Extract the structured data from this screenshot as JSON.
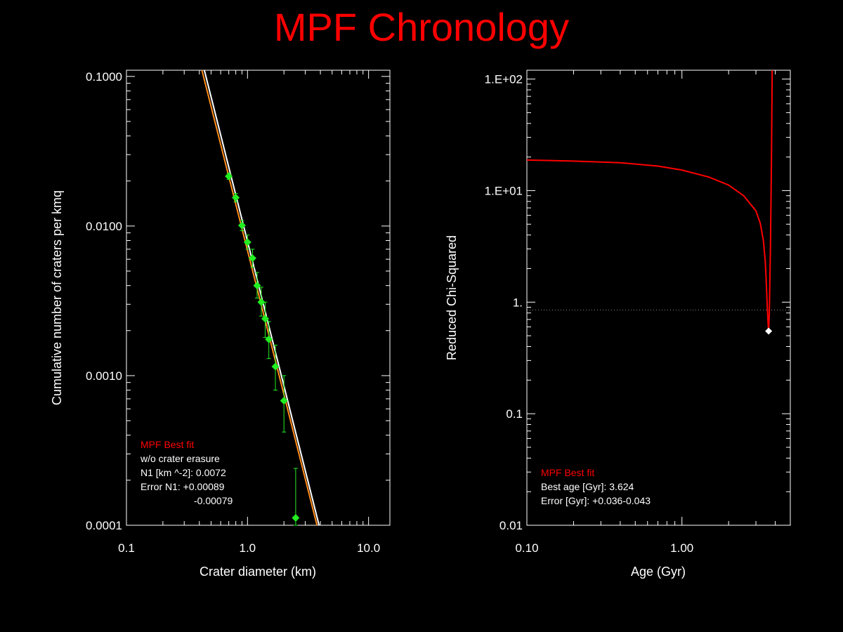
{
  "title": "MPF Chronology",
  "colors": {
    "title": "#ff0000",
    "fit_white": "#ffffff",
    "fit_orange": "#ff8c1a",
    "data_points": "#22ee22",
    "chi": "#ff0000",
    "min_marker": "#ffffff",
    "frame": "#ffffff"
  },
  "chart_data": [
    {
      "type": "scatter",
      "xlabel": "Crater diameter (km)",
      "ylabel": "Cumulative number of craters per kmq",
      "x_scale": "log",
      "y_scale": "log",
      "xlim": [
        0.1,
        15
      ],
      "ylim": [
        0.0001,
        0.11
      ],
      "x_ticks": [
        {
          "v": 0.1,
          "label": "0.1"
        },
        {
          "v": 1,
          "label": "1.0"
        },
        {
          "v": 10,
          "label": "10.0"
        }
      ],
      "y_ticks": [
        {
          "v": 0.0001,
          "label": "0.0001"
        },
        {
          "v": 0.001,
          "label": "0.0010"
        },
        {
          "v": 0.01,
          "label": "0.0100"
        },
        {
          "v": 0.1,
          "label": "0.1000"
        }
      ],
      "points": [
        {
          "x": 0.7,
          "y": 0.0215,
          "ylo": 0.0205,
          "yhi": 0.0225
        },
        {
          "x": 0.8,
          "y": 0.0155,
          "ylo": 0.0145,
          "yhi": 0.0165
        },
        {
          "x": 0.9,
          "y": 0.0101,
          "ylo": 0.0093,
          "yhi": 0.0109
        },
        {
          "x": 1.0,
          "y": 0.0078,
          "ylo": 0.007,
          "yhi": 0.0087
        },
        {
          "x": 1.1,
          "y": 0.0061,
          "ylo": 0.0053,
          "yhi": 0.007
        },
        {
          "x": 1.2,
          "y": 0.004,
          "ylo": 0.0033,
          "yhi": 0.0049
        },
        {
          "x": 1.3,
          "y": 0.0031,
          "ylo": 0.0025,
          "yhi": 0.0039
        },
        {
          "x": 1.4,
          "y": 0.0024,
          "ylo": 0.0018,
          "yhi": 0.0031
        },
        {
          "x": 1.5,
          "y": 0.00175,
          "ylo": 0.0013,
          "yhi": 0.0023
        },
        {
          "x": 1.7,
          "y": 0.00115,
          "ylo": 0.0008,
          "yhi": 0.0016
        },
        {
          "x": 2.0,
          "y": 0.00068,
          "ylo": 0.00042,
          "yhi": 0.001
        },
        {
          "x": 2.5,
          "y": 0.000112,
          "ylo": 0.0001,
          "yhi": 0.00024
        }
      ],
      "fits": [
        {
          "color": "#ffffff",
          "points": [
            [
              0.44,
              0.11
            ],
            [
              3.9,
              0.0001
            ]
          ]
        },
        {
          "color": "#ff8c1a",
          "points": [
            [
              0.42,
              0.11
            ],
            [
              3.75,
              0.0001
            ]
          ]
        }
      ],
      "legend": {
        "heading": "MPF Best fit",
        "lines": [
          "w/o crater erasure",
          "N1 [km ^-2]: 0.0072",
          "Error N1: +0.00089",
          "-0.00079"
        ]
      }
    },
    {
      "type": "line",
      "xlabel": "Age (Gyr)",
      "ylabel": "Reduced Chi-Squared",
      "x_scale": "log",
      "y_scale": "log",
      "xlim": [
        0.1,
        5.0
      ],
      "ylim": [
        0.01,
        120
      ],
      "x_ticks": [
        {
          "v": 0.1,
          "label": "0.10"
        },
        {
          "v": 1,
          "label": "1.00"
        }
      ],
      "y_ticks": [
        {
          "v": 0.01,
          "label": "0.01"
        },
        {
          "v": 0.1,
          "label": "0.1"
        },
        {
          "v": 1,
          "label": "1."
        },
        {
          "v": 10,
          "label": "1.E+01"
        },
        {
          "v": 100,
          "label": "1.E+02"
        }
      ],
      "series": [
        {
          "values": [
            [
              0.1,
              18.8
            ],
            [
              0.2,
              18.4
            ],
            [
              0.4,
              17.8
            ],
            [
              0.7,
              16.6
            ],
            [
              1.0,
              15.3
            ],
            [
              1.5,
              13.2
            ],
            [
              2.0,
              11.2
            ],
            [
              2.5,
              9.0
            ],
            [
              3.0,
              6.6
            ],
            [
              3.2,
              5.1
            ],
            [
              3.35,
              3.6
            ],
            [
              3.45,
              2.3
            ],
            [
              3.5,
              1.5
            ],
            [
              3.55,
              0.9
            ],
            [
              3.6,
              0.62
            ],
            [
              3.624,
              0.55
            ],
            [
              3.66,
              0.8
            ],
            [
              3.72,
              3.0
            ],
            [
              3.78,
              20
            ],
            [
              3.82,
              120
            ]
          ]
        }
      ],
      "reference_line_y": 0.85,
      "best_point": {
        "x": 3.624,
        "y": 0.55
      },
      "legend": {
        "heading": "MPF Best fit",
        "lines": [
          "Best age [Gyr]: 3.624",
          "Error [Gyr]: +0.036-0.043"
        ]
      }
    }
  ]
}
